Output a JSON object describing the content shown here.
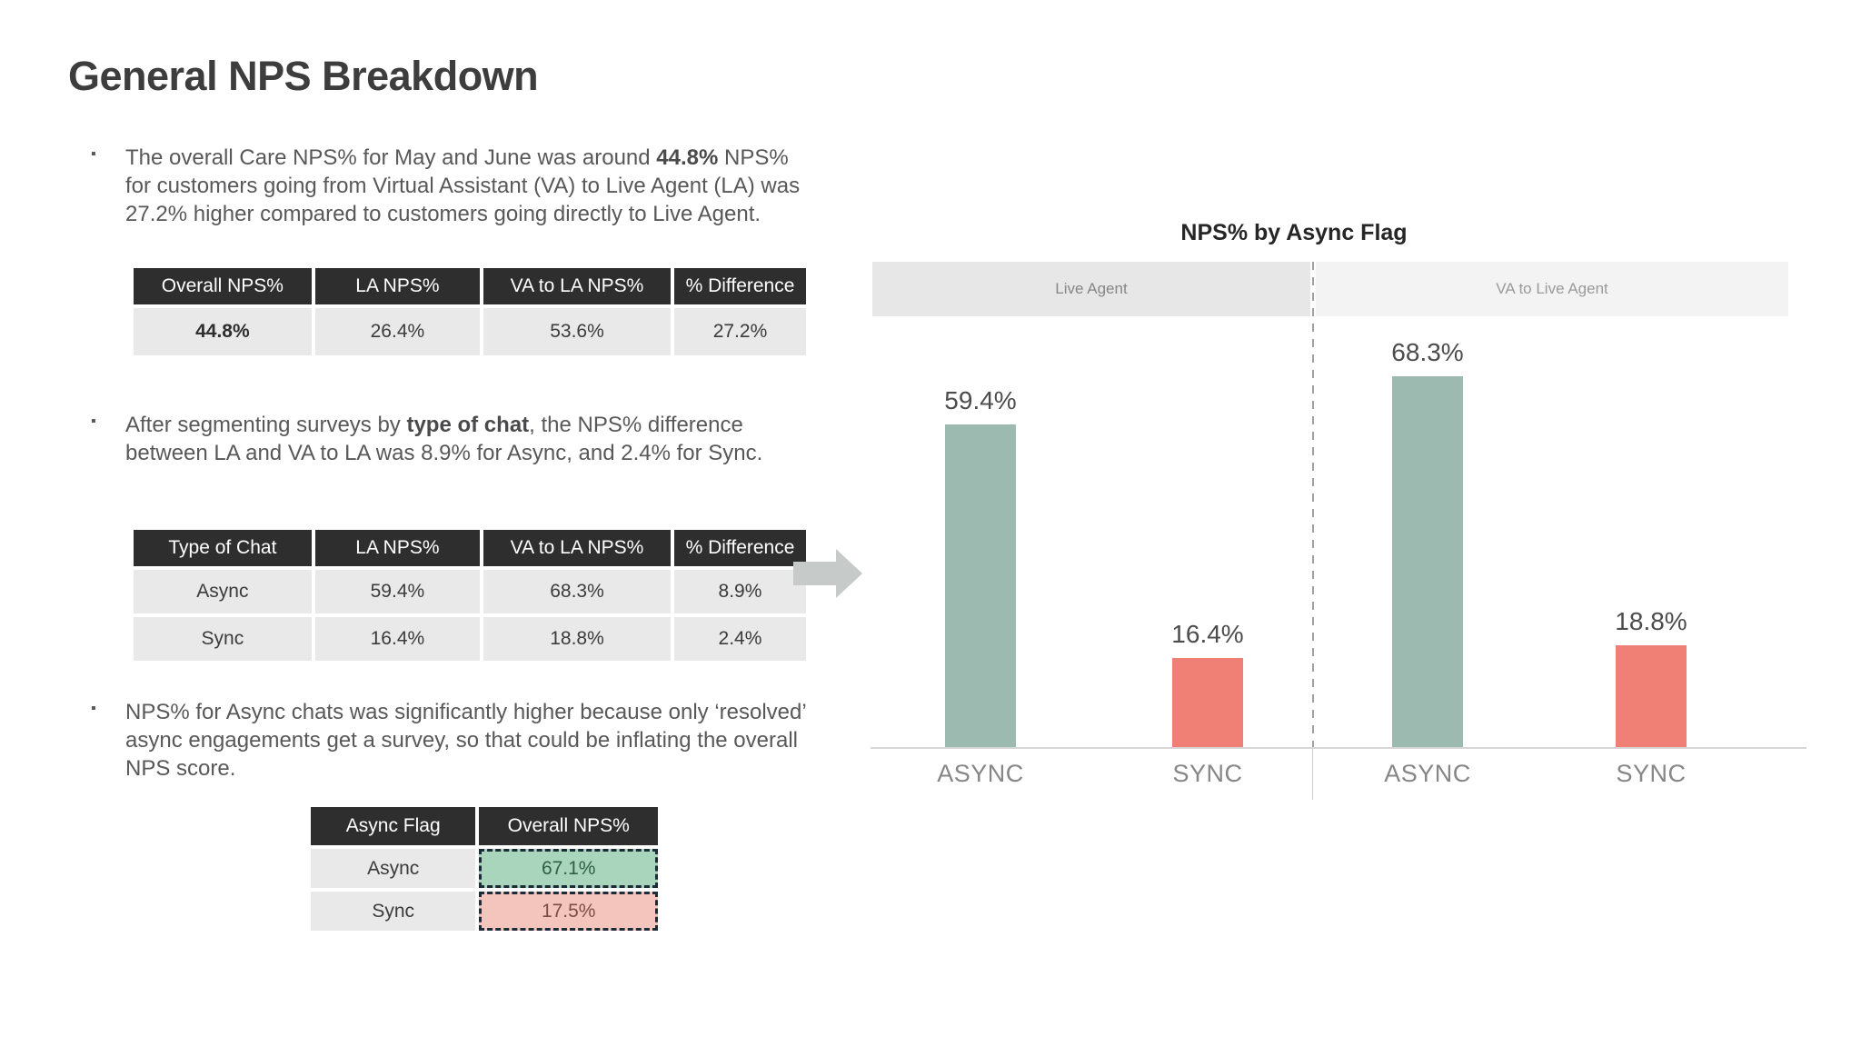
{
  "title": "General NPS Breakdown",
  "bullets": [
    {
      "segments": [
        {
          "t": "The overall Care NPS% for May and June was around ",
          "b": false
        },
        {
          "t": "44.8%",
          "b": true
        },
        {
          "t": " NPS% for customers going from Virtual Assistant (VA) to Live Agent (LA) was 27.2% higher compared to customers going directly to Live Agent.",
          "b": false
        }
      ]
    },
    {
      "segments": [
        {
          "t": "After segmenting surveys by ",
          "b": false
        },
        {
          "t": "type of chat",
          "b": true
        },
        {
          "t": ", the NPS% difference between LA and VA to LA was 8.9% for Async, and 2.4% for Sync.",
          "b": false
        }
      ]
    },
    {
      "segments": [
        {
          "t": "NPS% for Async chats was significantly higher because only ‘resolved’ async engagements get a survey, so that could be inflating the overall NPS score.",
          "b": false
        }
      ]
    }
  ],
  "tables": {
    "overall": {
      "headers": [
        "Overall NPS%",
        "LA NPS%",
        "VA to LA NPS%",
        "% Difference"
      ],
      "rows": [
        [
          "44.8%",
          "26.4%",
          "53.6%",
          "27.2%"
        ]
      ],
      "cell_styles": [
        [
          "bold",
          "",
          "",
          ""
        ]
      ]
    },
    "by_chat_type": {
      "headers": [
        "Type of Chat",
        "LA NPS%",
        "VA to LA NPS%",
        "% Difference"
      ],
      "rows": [
        [
          "Async",
          "59.4%",
          "68.3%",
          "8.9%"
        ],
        [
          "Sync",
          "16.4%",
          "18.8%",
          "2.4%"
        ]
      ],
      "cell_styles": [
        [
          "",
          "",
          "",
          ""
        ],
        [
          "",
          "",
          "",
          ""
        ]
      ]
    },
    "by_async_flag": {
      "headers": [
        "Async Flag",
        "Overall NPS%"
      ],
      "rows": [
        [
          "Async",
          "67.1%"
        ],
        [
          "Sync",
          "17.5%"
        ]
      ],
      "cell_styles": [
        [
          "",
          "positive"
        ],
        [
          "",
          "negative"
        ]
      ]
    }
  },
  "icons": {
    "arrow": "right-arrow"
  },
  "chart_data": {
    "type": "bar",
    "title": "NPS% by Async Flag",
    "panels": [
      {
        "label": "Live Agent",
        "categories": [
          "ASYNC",
          "SYNC"
        ],
        "values": [
          59.4,
          16.4
        ],
        "value_labels": [
          "59.4%",
          "16.4%"
        ]
      },
      {
        "label": "VA to Live Agent",
        "categories": [
          "ASYNC",
          "SYNC"
        ],
        "values": [
          68.3,
          18.8
        ],
        "value_labels": [
          "68.3%",
          "18.8%"
        ]
      }
    ],
    "bar_colors_by_category": {
      "ASYNC": "#9dbab0",
      "SYNC": "#f08076"
    },
    "ylim": [
      0,
      75
    ],
    "grid": false,
    "legend": false
  },
  "palette": {
    "table_header_bg": "#2e2e2e",
    "table_row_bg": "#e9e9e9",
    "highlight_green_bg": "#a8d5bc",
    "highlight_green_text": "#2d5f44",
    "highlight_red_bg": "#f3c5bd",
    "highlight_red_text": "#7d4d45",
    "bar_green": "#9dbab0",
    "bar_red": "#f08076",
    "arrow_gray": "#c6cac9"
  }
}
